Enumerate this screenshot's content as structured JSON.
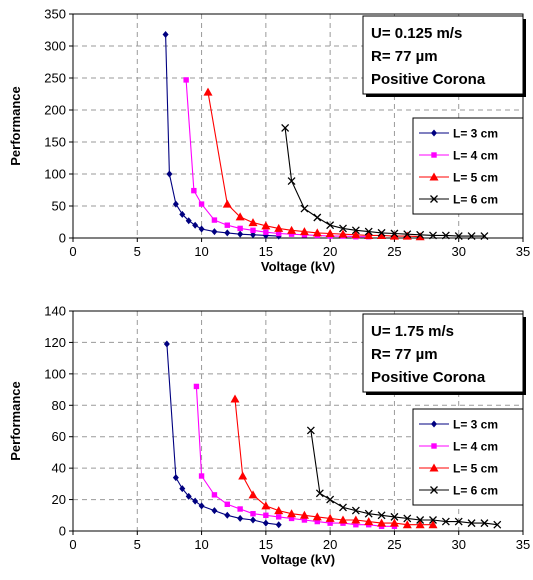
{
  "chart_data": [
    {
      "type": "line",
      "xlabel": "Voltage (kV)",
      "ylabel": "Performance",
      "xlim": [
        0,
        35
      ],
      "ylim": [
        0,
        350
      ],
      "xticks": [
        "0",
        "5",
        "10",
        "15",
        "20",
        "25",
        "30",
        "35"
      ],
      "yticks": [
        "0",
        "50",
        "100",
        "150",
        "200",
        "250",
        "300",
        "350"
      ],
      "grid": true,
      "annotation": [
        "U= 0.125 m/s",
        "R= 77 µm",
        "Positive Corona"
      ],
      "legend_position": "right",
      "series": [
        {
          "name": "L= 3 cm",
          "color": "#000080",
          "marker": "diamond",
          "x": [
            7.2,
            7.5,
            8.0,
            8.5,
            9.0,
            9.5,
            10.0,
            11.0,
            12.0,
            13.0,
            14.0,
            15.0,
            16.0
          ],
          "y": [
            318,
            100,
            53,
            37,
            27,
            20,
            14,
            10,
            8,
            6,
            5,
            4,
            3
          ]
        },
        {
          "name": "L= 4 cm",
          "color": "#ff00ff",
          "marker": "square",
          "x": [
            8.8,
            9.4,
            10.0,
            11.0,
            12.0,
            13.0,
            14.0,
            15.0,
            16.0,
            17.0,
            18.0,
            19.0,
            20.0,
            21.0,
            22.0,
            23.0
          ],
          "y": [
            247,
            74,
            53,
            28,
            20,
            15,
            12,
            9,
            7,
            6,
            5,
            4,
            3,
            3,
            2,
            2
          ]
        },
        {
          "name": "L= 5 cm",
          "color": "#ff0000",
          "marker": "triangle",
          "x": [
            10.5,
            12.0,
            13.0,
            14.0,
            15.0,
            16.0,
            17.0,
            18.0,
            19.0,
            20.0,
            21.0,
            22.0,
            23.0,
            24.0,
            25.0,
            26.0,
            27.0
          ],
          "y": [
            228,
            53,
            33,
            24,
            19,
            15,
            12,
            10,
            8,
            7,
            6,
            5,
            4,
            4,
            3,
            3,
            2
          ]
        },
        {
          "name": "L= 6 cm",
          "color": "#000000",
          "marker": "x",
          "x": [
            16.5,
            17.0,
            18.0,
            19.0,
            20.0,
            21.0,
            22.0,
            23.0,
            24.0,
            25.0,
            26.0,
            27.0,
            28.0,
            29.0,
            30.0,
            31.0,
            32.0
          ],
          "y": [
            172,
            89,
            46,
            32,
            20,
            15,
            12,
            10,
            8,
            7,
            6,
            5,
            4,
            4,
            3,
            3,
            3
          ]
        }
      ]
    },
    {
      "type": "line",
      "xlabel": "Voltage (kV)",
      "ylabel": "Performance",
      "xlim": [
        0,
        35
      ],
      "ylim": [
        0,
        140
      ],
      "xticks": [
        "0",
        "5",
        "10",
        "15",
        "20",
        "25",
        "30",
        "35"
      ],
      "yticks": [
        "0",
        "20",
        "40",
        "60",
        "80",
        "100",
        "120",
        "140"
      ],
      "grid": true,
      "annotation": [
        "U= 1.75 m/s",
        "R= 77 µm",
        "Positive Corona"
      ],
      "legend_position": "right",
      "series": [
        {
          "name": "L= 3 cm",
          "color": "#000080",
          "marker": "diamond",
          "x": [
            7.3,
            8.0,
            8.5,
            9.0,
            9.5,
            10.0,
            11.0,
            12.0,
            13.0,
            14.0,
            15.0,
            16.0
          ],
          "y": [
            119,
            34,
            27,
            22,
            19,
            16,
            13,
            10,
            8,
            7,
            5,
            4
          ]
        },
        {
          "name": "L= 4 cm",
          "color": "#ff00ff",
          "marker": "square",
          "x": [
            9.6,
            10.0,
            11.0,
            12.0,
            13.0,
            14.0,
            15.0,
            16.0,
            17.0,
            18.0,
            19.0,
            20.0,
            21.0,
            22.0,
            23.0,
            24.0,
            25.0
          ],
          "y": [
            92,
            35,
            23,
            17,
            14,
            11,
            10,
            9,
            8,
            7,
            6,
            5,
            5,
            4,
            4,
            3,
            3
          ]
        },
        {
          "name": "L= 5 cm",
          "color": "#ff0000",
          "marker": "triangle",
          "x": [
            12.6,
            13.2,
            14.0,
            15.0,
            16.0,
            17.0,
            18.0,
            19.0,
            20.0,
            21.0,
            22.0,
            23.0,
            24.0,
            25.0,
            26.0,
            27.0,
            28.0
          ],
          "y": [
            84,
            35,
            23,
            16,
            13,
            11,
            10,
            9,
            8,
            7,
            7,
            6,
            5,
            5,
            4,
            4,
            4
          ]
        },
        {
          "name": "L= 6 cm",
          "color": "#000000",
          "marker": "x",
          "x": [
            18.5,
            19.2,
            20.0,
            21.0,
            22.0,
            23.0,
            24.0,
            25.0,
            26.0,
            27.0,
            28.0,
            29.0,
            30.0,
            31.0,
            32.0,
            33.0
          ],
          "y": [
            64,
            24,
            20,
            15,
            13,
            11,
            10,
            9,
            8,
            7,
            7,
            6,
            6,
            5,
            5,
            4
          ]
        }
      ]
    }
  ]
}
